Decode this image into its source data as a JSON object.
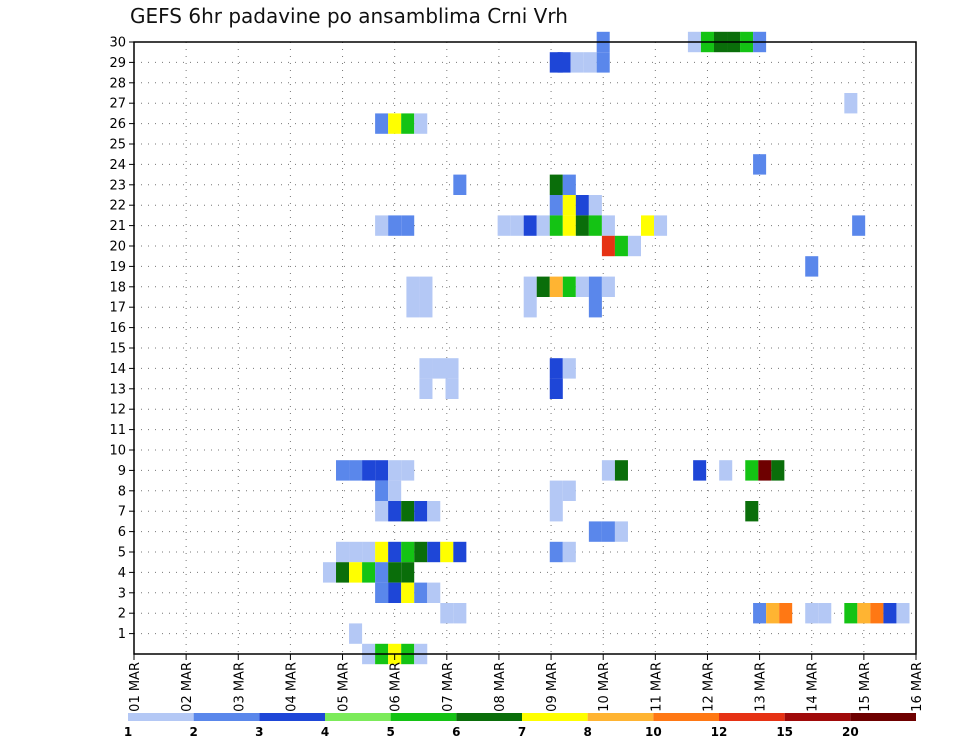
{
  "chart_data": {
    "type": "heatmap",
    "title": "GEFS 6hr padavine po ansamblima Crni Vrh",
    "xlabel": "",
    "ylabel": "",
    "x_ticks": [
      "01 MAR",
      "02 MAR",
      "03 MAR",
      "04 MAR",
      "05 MAR",
      "06 MAR",
      "07 MAR",
      "08 MAR",
      "09 MAR",
      "10 MAR",
      "11 MAR",
      "12 MAR",
      "13 MAR",
      "14 MAR",
      "15 MAR",
      "16 MAR"
    ],
    "x_range_days": [
      1,
      16
    ],
    "y_ticks": [
      1,
      2,
      3,
      4,
      5,
      6,
      7,
      8,
      9,
      10,
      11,
      12,
      13,
      14,
      15,
      16,
      17,
      18,
      19,
      20,
      21,
      22,
      23,
      24,
      25,
      26,
      27,
      28,
      29,
      30
    ],
    "y_range": [
      0,
      30
    ],
    "grid": true,
    "legend": {
      "placement": "bottom",
      "labels": [
        "1",
        "2",
        "3",
        "4",
        "5",
        "6",
        "7",
        "8",
        "10",
        "12",
        "15",
        "20"
      ],
      "colors": [
        "#b4c8f5",
        "#5a87eb",
        "#1e46d7",
        "#7ceb5a",
        "#14c314",
        "#0a6e0a",
        "#ffff00",
        "#ffb432",
        "#ff7814",
        "#e63214",
        "#a00a0a",
        "#6e0000"
      ]
    },
    "cells": [
      {
        "day": 9.1,
        "member": 29,
        "level": 3
      },
      {
        "day": 9.25,
        "member": 29,
        "level": 3
      },
      {
        "day": 9.5,
        "member": 29,
        "level": 1
      },
      {
        "day": 9.75,
        "member": 29,
        "level": 1
      },
      {
        "day": 10.0,
        "member": 29,
        "level": 2
      },
      {
        "day": 10.0,
        "member": 30,
        "level": 2
      },
      {
        "day": 11.75,
        "member": 30,
        "level": 1
      },
      {
        "day": 12.0,
        "member": 30,
        "level": 5
      },
      {
        "day": 12.25,
        "member": 30,
        "level": 6
      },
      {
        "day": 12.5,
        "member": 30,
        "level": 6
      },
      {
        "day": 12.75,
        "member": 30,
        "level": 5
      },
      {
        "day": 13.0,
        "member": 30,
        "level": 2
      },
      {
        "day": 14.75,
        "member": 27,
        "level": 1
      },
      {
        "day": 5.75,
        "member": 26,
        "level": 2
      },
      {
        "day": 6.0,
        "member": 26,
        "level": 7
      },
      {
        "day": 6.25,
        "member": 26,
        "level": 5
      },
      {
        "day": 6.5,
        "member": 26,
        "level": 1
      },
      {
        "day": 13.0,
        "member": 24,
        "level": 2
      },
      {
        "day": 7.25,
        "member": 23,
        "level": 2
      },
      {
        "day": 9.1,
        "member": 23,
        "level": 6
      },
      {
        "day": 9.35,
        "member": 23,
        "level": 2
      },
      {
        "day": 9.1,
        "member": 22,
        "level": 2
      },
      {
        "day": 9.35,
        "member": 22,
        "level": 7
      },
      {
        "day": 9.6,
        "member": 22,
        "level": 3
      },
      {
        "day": 9.85,
        "member": 22,
        "level": 1
      },
      {
        "day": 5.75,
        "member": 21,
        "level": 1
      },
      {
        "day": 6.0,
        "member": 21,
        "level": 2
      },
      {
        "day": 6.25,
        "member": 21,
        "level": 2
      },
      {
        "day": 8.1,
        "member": 21,
        "level": 1
      },
      {
        "day": 8.35,
        "member": 21,
        "level": 1
      },
      {
        "day": 8.6,
        "member": 21,
        "level": 3
      },
      {
        "day": 8.85,
        "member": 21,
        "level": 1
      },
      {
        "day": 9.1,
        "member": 21,
        "level": 5
      },
      {
        "day": 9.35,
        "member": 21,
        "level": 7
      },
      {
        "day": 9.6,
        "member": 21,
        "level": 6
      },
      {
        "day": 9.85,
        "member": 21,
        "level": 5
      },
      {
        "day": 10.1,
        "member": 21,
        "level": 1
      },
      {
        "day": 10.85,
        "member": 21,
        "level": 7
      },
      {
        "day": 11.1,
        "member": 21,
        "level": 1
      },
      {
        "day": 14.9,
        "member": 21,
        "level": 2
      },
      {
        "day": 10.1,
        "member": 20,
        "level": 10
      },
      {
        "day": 10.35,
        "member": 20,
        "level": 5
      },
      {
        "day": 10.6,
        "member": 20,
        "level": 1
      },
      {
        "day": 14.0,
        "member": 19,
        "level": 2
      },
      {
        "day": 6.35,
        "member": 18,
        "level": 1
      },
      {
        "day": 6.6,
        "member": 18,
        "level": 1
      },
      {
        "day": 8.6,
        "member": 18,
        "level": 1
      },
      {
        "day": 8.85,
        "member": 18,
        "level": 6
      },
      {
        "day": 9.1,
        "member": 18,
        "level": 8
      },
      {
        "day": 9.35,
        "member": 18,
        "level": 5
      },
      {
        "day": 9.6,
        "member": 18,
        "level": 1
      },
      {
        "day": 9.85,
        "member": 18,
        "level": 2
      },
      {
        "day": 10.1,
        "member": 18,
        "level": 1
      },
      {
        "day": 6.35,
        "member": 17,
        "level": 1
      },
      {
        "day": 6.6,
        "member": 17,
        "level": 1
      },
      {
        "day": 8.6,
        "member": 17,
        "level": 1
      },
      {
        "day": 9.85,
        "member": 17,
        "level": 2
      },
      {
        "day": 6.6,
        "member": 14,
        "level": 1
      },
      {
        "day": 6.85,
        "member": 14,
        "level": 1
      },
      {
        "day": 7.1,
        "member": 14,
        "level": 1
      },
      {
        "day": 9.1,
        "member": 14,
        "level": 3
      },
      {
        "day": 9.35,
        "member": 14,
        "level": 1
      },
      {
        "day": 6.6,
        "member": 13,
        "level": 1
      },
      {
        "day": 7.1,
        "member": 13,
        "level": 1
      },
      {
        "day": 9.1,
        "member": 13,
        "level": 3
      },
      {
        "day": 5.0,
        "member": 9,
        "level": 2
      },
      {
        "day": 5.25,
        "member": 9,
        "level": 2
      },
      {
        "day": 5.5,
        "member": 9,
        "level": 3
      },
      {
        "day": 5.75,
        "member": 9,
        "level": 3
      },
      {
        "day": 6.0,
        "member": 9,
        "level": 1
      },
      {
        "day": 6.25,
        "member": 9,
        "level": 1
      },
      {
        "day": 10.1,
        "member": 9,
        "level": 1
      },
      {
        "day": 10.35,
        "member": 9,
        "level": 6
      },
      {
        "day": 11.85,
        "member": 9,
        "level": 3
      },
      {
        "day": 12.35,
        "member": 9,
        "level": 1
      },
      {
        "day": 12.85,
        "member": 9,
        "level": 5
      },
      {
        "day": 13.1,
        "member": 9,
        "level": 12
      },
      {
        "day": 13.35,
        "member": 9,
        "level": 6
      },
      {
        "day": 5.75,
        "member": 8,
        "level": 2
      },
      {
        "day": 6.0,
        "member": 8,
        "level": 1
      },
      {
        "day": 9.1,
        "member": 8,
        "level": 1
      },
      {
        "day": 9.35,
        "member": 8,
        "level": 1
      },
      {
        "day": 5.75,
        "member": 7,
        "level": 1
      },
      {
        "day": 6.0,
        "member": 7,
        "level": 3
      },
      {
        "day": 6.25,
        "member": 7,
        "level": 6
      },
      {
        "day": 6.5,
        "member": 7,
        "level": 3
      },
      {
        "day": 6.75,
        "member": 7,
        "level": 1
      },
      {
        "day": 9.1,
        "member": 7,
        "level": 1
      },
      {
        "day": 12.85,
        "member": 7,
        "level": 6
      },
      {
        "day": 9.85,
        "member": 6,
        "level": 2
      },
      {
        "day": 10.1,
        "member": 6,
        "level": 2
      },
      {
        "day": 10.35,
        "member": 6,
        "level": 1
      },
      {
        "day": 5.0,
        "member": 5,
        "level": 1
      },
      {
        "day": 5.25,
        "member": 5,
        "level": 1
      },
      {
        "day": 5.5,
        "member": 5,
        "level": 1
      },
      {
        "day": 5.75,
        "member": 5,
        "level": 7
      },
      {
        "day": 6.0,
        "member": 5,
        "level": 3
      },
      {
        "day": 6.25,
        "member": 5,
        "level": 5
      },
      {
        "day": 6.5,
        "member": 5,
        "level": 6
      },
      {
        "day": 6.75,
        "member": 5,
        "level": 3
      },
      {
        "day": 7.0,
        "member": 5,
        "level": 7
      },
      {
        "day": 7.25,
        "member": 5,
        "level": 3
      },
      {
        "day": 9.1,
        "member": 5,
        "level": 2
      },
      {
        "day": 9.35,
        "member": 5,
        "level": 1
      },
      {
        "day": 4.75,
        "member": 4,
        "level": 1
      },
      {
        "day": 5.0,
        "member": 4,
        "level": 6
      },
      {
        "day": 5.25,
        "member": 4,
        "level": 7
      },
      {
        "day": 5.5,
        "member": 4,
        "level": 5
      },
      {
        "day": 5.75,
        "member": 4,
        "level": 2
      },
      {
        "day": 6.0,
        "member": 4,
        "level": 6
      },
      {
        "day": 6.25,
        "member": 4,
        "level": 6
      },
      {
        "day": 5.75,
        "member": 3,
        "level": 2
      },
      {
        "day": 6.0,
        "member": 3,
        "level": 3
      },
      {
        "day": 6.25,
        "member": 3,
        "level": 7
      },
      {
        "day": 6.5,
        "member": 3,
        "level": 2
      },
      {
        "day": 6.75,
        "member": 3,
        "level": 1
      },
      {
        "day": 7.0,
        "member": 2,
        "level": 1
      },
      {
        "day": 7.25,
        "member": 2,
        "level": 1
      },
      {
        "day": 13.0,
        "member": 2,
        "level": 2
      },
      {
        "day": 13.25,
        "member": 2,
        "level": 8
      },
      {
        "day": 13.5,
        "member": 2,
        "level": 9
      },
      {
        "day": 14.0,
        "member": 2,
        "level": 1
      },
      {
        "day": 14.25,
        "member": 2,
        "level": 1
      },
      {
        "day": 14.75,
        "member": 2,
        "level": 5
      },
      {
        "day": 15.0,
        "member": 2,
        "level": 8
      },
      {
        "day": 15.25,
        "member": 2,
        "level": 9
      },
      {
        "day": 15.5,
        "member": 2,
        "level": 3
      },
      {
        "day": 15.75,
        "member": 2,
        "level": 1
      },
      {
        "day": 5.25,
        "member": 1,
        "level": 1
      },
      {
        "day": 5.5,
        "member": 0,
        "level": 1
      },
      {
        "day": 5.75,
        "member": 0,
        "level": 5
      },
      {
        "day": 6.0,
        "member": 0,
        "level": 7
      },
      {
        "day": 6.25,
        "member": 0,
        "level": 5
      },
      {
        "day": 6.5,
        "member": 0,
        "level": 1
      }
    ]
  }
}
